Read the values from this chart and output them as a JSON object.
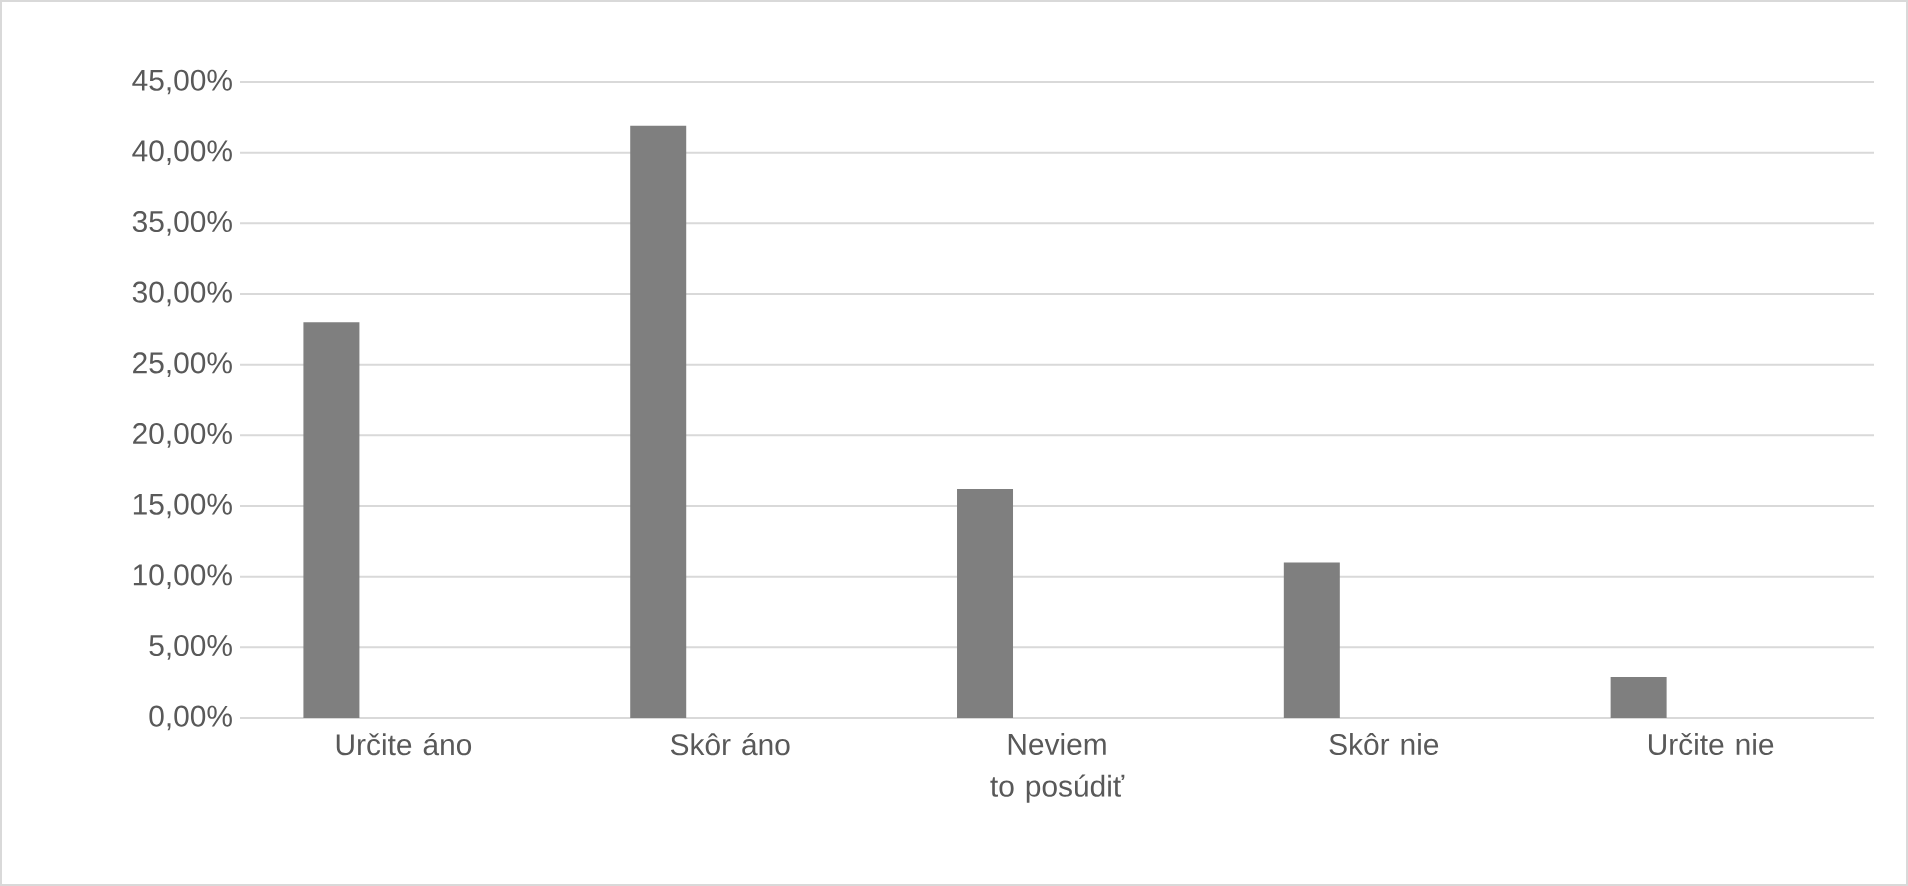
{
  "chart_data": {
    "type": "bar",
    "categories": [
      "Určite áno",
      "Skôr áno",
      "Neviem to posúdiť",
      "Skôr nie",
      "Určite nie"
    ],
    "values": [
      28,
      41.9,
      16.2,
      11,
      2.9
    ],
    "color": "#7f7f7f",
    "ylim": [
      0,
      45
    ],
    "yticks": [
      {
        "value": 0,
        "label": "0,00%"
      },
      {
        "value": 5,
        "label": "5,00%"
      },
      {
        "value": 10,
        "label": "10,00%"
      },
      {
        "value": 15,
        "label": "15,00%"
      },
      {
        "value": 20,
        "label": "20,00%"
      },
      {
        "value": 25,
        "label": "25,00%"
      },
      {
        "value": 30,
        "label": "30,00%"
      },
      {
        "value": 35,
        "label": "35,00%"
      },
      {
        "value": 40,
        "label": "40,00%"
      },
      {
        "value": 45,
        "label": "45,00%"
      }
    ],
    "grid": "y"
  }
}
